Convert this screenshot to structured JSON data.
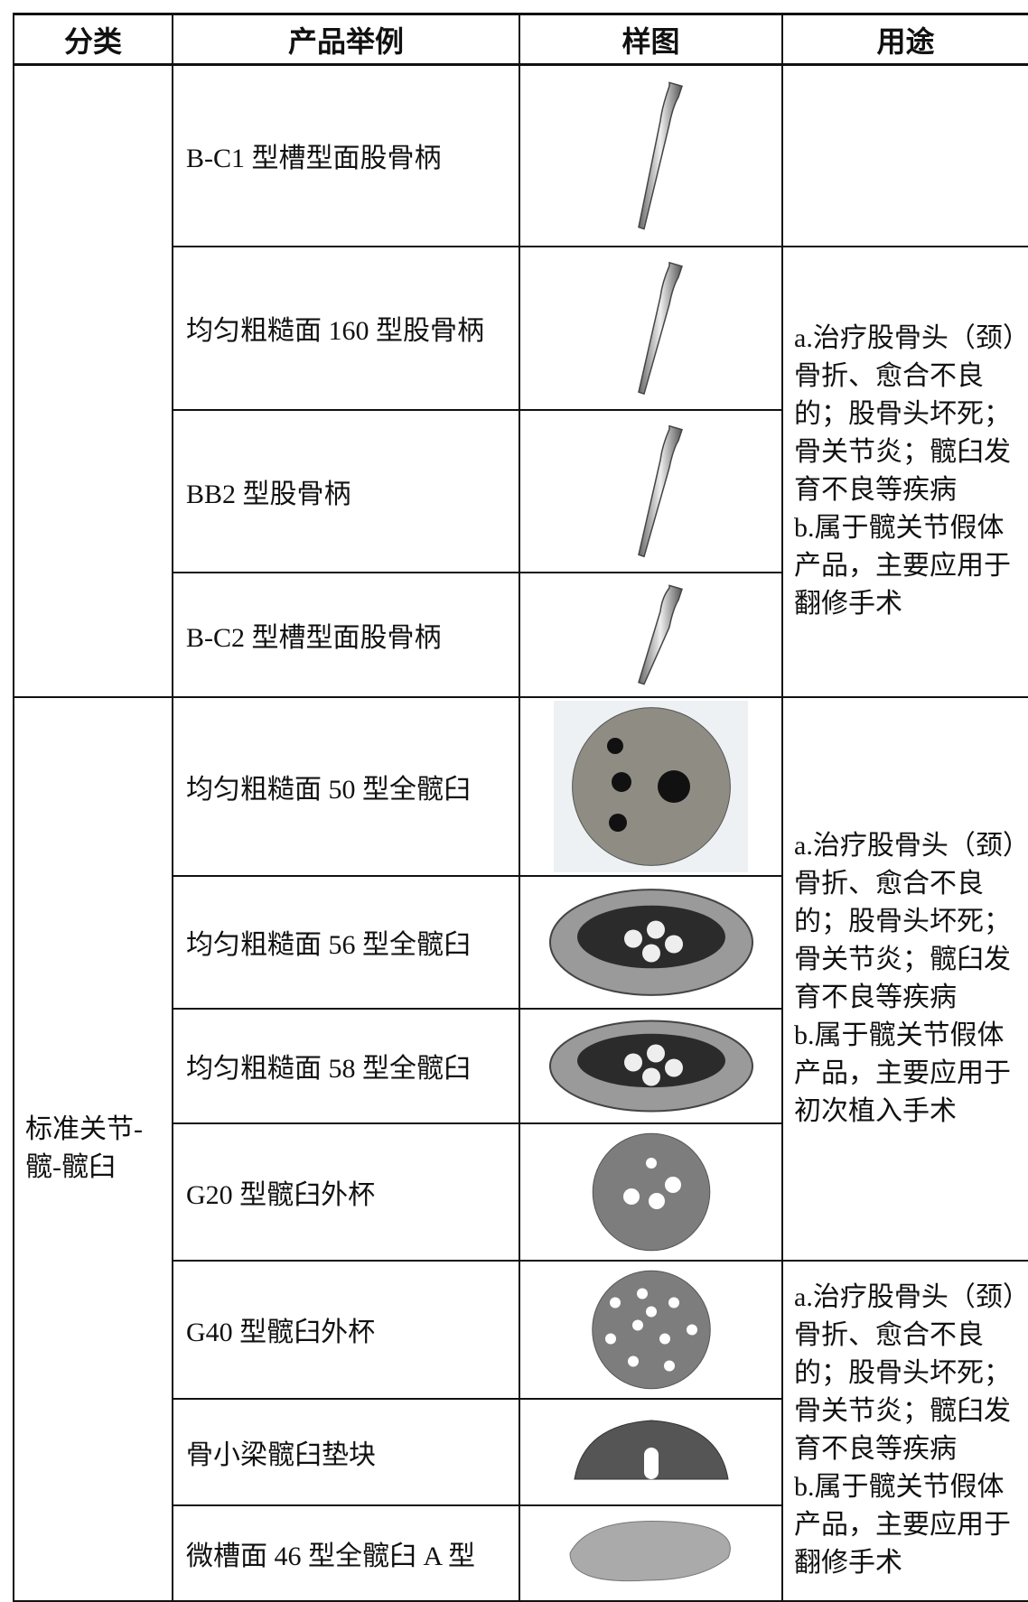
{
  "table": {
    "header": [
      "分类",
      "产品举例",
      "样图",
      "用途"
    ],
    "groups": [
      {
        "blocks": [
          {
            "products": [
              "B-C1 型槽型面股骨柄"
            ]
          },
          {
            "usage": [
              "a.治疗股骨头（颈）骨折、愈合不良的；股骨头坏死；骨关节炎；髋臼发育不良等疾病",
              "b.属于髋关节假体产品，主要应用于翻修手术"
            ],
            "products": [
              "均匀粗糙面 160 型股骨柄",
              "BB2 型股骨柄",
              "B-C2 型槽型面股骨柄"
            ]
          }
        ]
      },
      {
        "category": "标准关节-髋-髋臼",
        "blocks": [
          {
            "usage": [
              "a.治疗股骨头（颈）骨折、愈合不良的；股骨头坏死；骨关节炎；髋臼发育不良等疾病",
              "b.属于髋关节假体产品，主要应用于初次植入手术"
            ],
            "products": [
              "均匀粗糙面 50 型全髋臼",
              "均匀粗糙面 56 型全髋臼",
              "均匀粗糙面 58 型全髋臼",
              "G20 型髋臼外杯"
            ]
          },
          {
            "usage": [
              "a.治疗股骨头（颈）骨折、愈合不良的；股骨头坏死；骨关节炎；髋臼发育不良等疾病",
              "b.属于髋关节假体产品，主要应用于翻修手术"
            ],
            "products": [
              "G40 型髋臼外杯",
              "骨小梁髋臼垫块",
              "微槽面 46 型全髋臼 A 型"
            ]
          }
        ]
      }
    ]
  }
}
